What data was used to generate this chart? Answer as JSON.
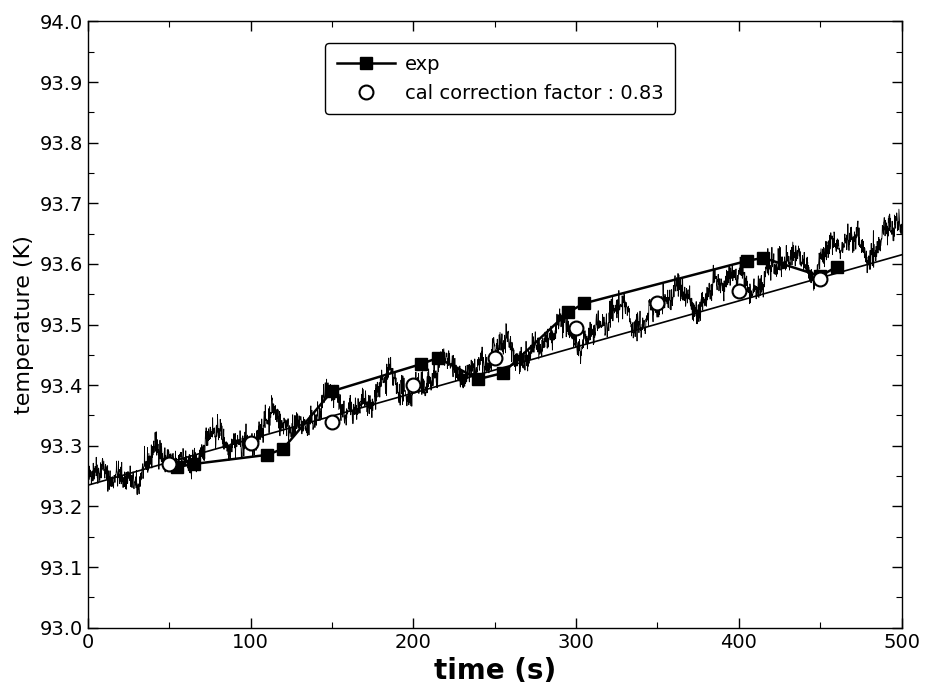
{
  "title": "",
  "xlabel": "time (s)",
  "ylabel": "temperature (K)",
  "xlim": [
    0,
    500
  ],
  "ylim": [
    93.0,
    94.0
  ],
  "xticks": [
    0,
    100,
    200,
    300,
    400,
    500
  ],
  "yticks": [
    93.0,
    93.1,
    93.2,
    93.3,
    93.4,
    93.5,
    93.6,
    93.7,
    93.8,
    93.9,
    94.0
  ],
  "exp_markers_x": [
    55,
    65,
    110,
    120,
    150,
    205,
    215,
    240,
    255,
    295,
    305,
    405,
    415,
    450,
    460
  ],
  "exp_markers_y": [
    93.265,
    93.27,
    93.285,
    93.295,
    93.39,
    93.435,
    93.445,
    93.41,
    93.42,
    93.52,
    93.535,
    93.605,
    93.61,
    93.58,
    93.595
  ],
  "cal_markers_x": [
    50,
    100,
    150,
    200,
    250,
    300,
    350,
    400,
    450
  ],
  "cal_markers_y": [
    93.27,
    93.305,
    93.34,
    93.4,
    93.445,
    93.495,
    93.535,
    93.555,
    93.575
  ],
  "cal_line_start_x": 0,
  "cal_line_start_y": 93.235,
  "cal_line_end_x": 500,
  "cal_line_end_y": 93.615,
  "noise_seed": 42,
  "exp_line_start_x": 0,
  "exp_line_start_y": 93.235,
  "exp_line_end_x": 500,
  "exp_line_end_y": 93.655,
  "legend_exp": "exp",
  "legend_cal": "cal correction factor : 0.83",
  "line_color": "#000000",
  "xlabel_fontsize": 20,
  "ylabel_fontsize": 16,
  "tick_fontsize": 14,
  "legend_fontsize": 14
}
